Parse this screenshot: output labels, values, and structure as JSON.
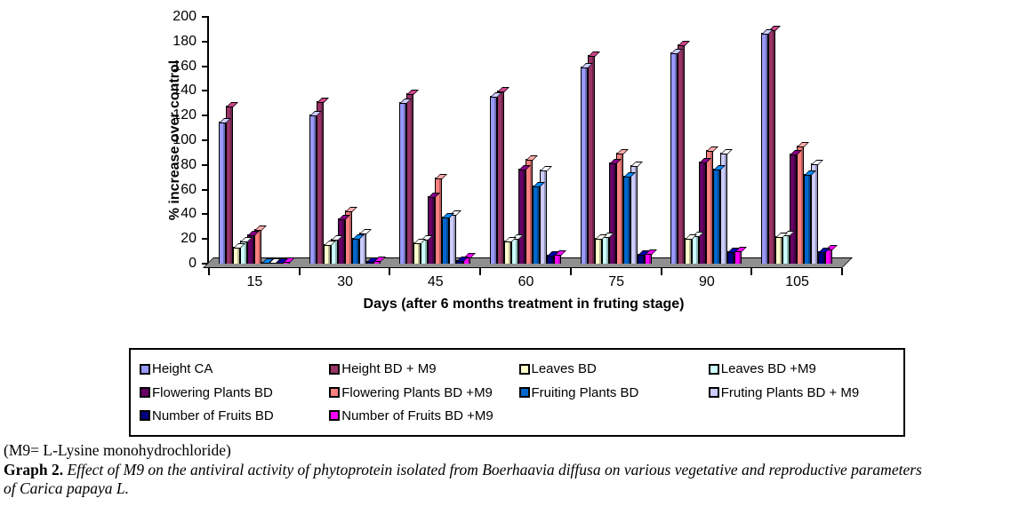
{
  "chart_data": {
    "type": "bar",
    "style": "3d-clustered",
    "title": "",
    "xlabel": "Days (after 6 months treatment in fruting stage)",
    "ylabel": "% increase over control",
    "ylim": [
      0,
      200
    ],
    "ytick_step": 20,
    "grid": false,
    "legend_position": "bottom-box",
    "floor_color": "#8f8f8f",
    "categories": [
      "15",
      "30",
      "45",
      "60",
      "75",
      "90",
      "105"
    ],
    "series": [
      {
        "name": "Height CA",
        "color": "#9999FF",
        "values": [
          115,
          121,
          131,
          136,
          160,
          171,
          187
        ]
      },
      {
        "name": "Height BD + M9",
        "color": "#993366",
        "values": [
          128,
          132,
          138,
          140,
          169,
          178,
          190
        ]
      },
      {
        "name": "Leaves BD",
        "color": "#FFFFCC",
        "values": [
          14,
          16,
          17,
          19,
          21,
          21,
          22
        ]
      },
      {
        "name": "Leaves BD +M9",
        "color": "#CCFFFF",
        "values": [
          19,
          20,
          20,
          21,
          22,
          23,
          24
        ]
      },
      {
        "name": "Flowering Plants BD",
        "color": "#660066",
        "values": [
          24,
          37,
          55,
          77,
          82,
          83,
          89
        ]
      },
      {
        "name": "Flowering Plants BD +M9",
        "color": "#FF8080",
        "values": [
          28,
          43,
          70,
          85,
          90,
          92,
          96
        ]
      },
      {
        "name": "Fruiting Plants BD",
        "color": "#0066CC",
        "values": [
          1,
          21,
          38,
          63,
          71,
          77,
          73
        ]
      },
      {
        "name": "Fruting Plants BD + M9",
        "color": "#CCCCFF",
        "values": [
          1,
          25,
          40,
          76,
          80,
          90,
          81
        ]
      },
      {
        "name": "Number of Fruits BD",
        "color": "#000080",
        "values": [
          1,
          2,
          3,
          7,
          8,
          10,
          10
        ]
      },
      {
        "name": "Number of Fruits BD +M9",
        "color": "#FF00FF",
        "values": [
          2,
          3,
          6,
          8,
          9,
          11,
          12
        ]
      }
    ]
  },
  "caption": {
    "note": "(M9= L-Lysine monohydrochloride)",
    "graph_label": "Graph 2.",
    "body_line1": "Effect of M9 on the antiviral activity of phytoprotein isolated from Boerhaavia diffusa on various vegetative and reproductive parameters",
    "body_line2": "of Carica papaya L."
  }
}
